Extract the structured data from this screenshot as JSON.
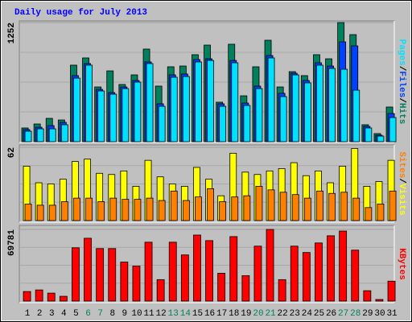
{
  "chart_data": {
    "type": "bar",
    "title": "Daily usage for July 2013",
    "legend_separator": "/",
    "categories": [
      "1",
      "2",
      "3",
      "4",
      "5",
      "6",
      "7",
      "8",
      "9",
      "10",
      "11",
      "12",
      "13",
      "14",
      "15",
      "16",
      "17",
      "18",
      "19",
      "20",
      "21",
      "22",
      "23",
      "24",
      "25",
      "26",
      "27",
      "28",
      "29",
      "30",
      "31"
    ],
    "category_colors": [
      "#000000",
      "#000000",
      "#000000",
      "#000000",
      "#000000",
      "#00805c",
      "#00805c",
      "#000000",
      "#000000",
      "#000000",
      "#000000",
      "#000000",
      "#00805c",
      "#00805c",
      "#000000",
      "#000000",
      "#000000",
      "#000000",
      "#000000",
      "#00805c",
      "#00805c",
      "#000000",
      "#000000",
      "#000000",
      "#000000",
      "#000000",
      "#00805c",
      "#00805c",
      "#000000",
      "#000000",
      "#000000"
    ],
    "panels": [
      {
        "ylim": [
          0,
          1252
        ],
        "yticks": [
          1252
        ],
        "legend_order": [
          2,
          1,
          0
        ],
        "series": [
          {
            "name": "Hits",
            "color": "#00805c",
            "values": [
              144,
              186,
              245,
              228,
              804,
              880,
              575,
              744,
              601,
              702,
              973,
              584,
              787,
              795,
              914,
              1015,
              415,
              1024,
              482,
              787,
              1066,
              575,
              736,
              694,
              914,
              871,
              1252,
              1125,
              178,
              85,
              364
            ]
          },
          {
            "name": "Files",
            "color": "#0040ff",
            "values": [
              127,
              152,
              169,
              203,
              694,
              821,
              550,
              516,
              575,
              643,
              838,
              398,
              702,
              711,
              863,
              871,
              398,
              854,
              406,
              584,
              905,
              508,
              719,
              643,
              829,
              795,
              1049,
              1007,
              161,
              68,
              296
            ]
          },
          {
            "name": "Pages",
            "color": "#00e0ff",
            "values": [
              110,
              135,
              135,
              178,
              668,
              804,
              533,
              499,
              558,
              626,
              821,
              372,
              677,
              685,
              838,
              854,
              372,
              829,
              381,
              558,
              880,
              474,
              702,
              618,
              804,
              770,
              761,
              541,
              144,
              59,
              254
            ]
          }
        ]
      },
      {
        "ylim": [
          0,
          62
        ],
        "yticks": [
          62
        ],
        "legend_order": [
          1,
          0
        ],
        "series": [
          {
            "name": "Visits",
            "color": "#ffff00",
            "values": [
              46,
              32,
              31,
              35,
              50,
              52,
              40,
              39,
              42,
              29,
              51,
              37,
              31,
              29,
              45,
              35,
              21,
              57,
              41,
              39,
              42,
              44,
              49,
              38,
              42,
              32,
              46,
              61,
              29,
              33,
              51
            ]
          },
          {
            "name": "Sites",
            "color": "#ff8000",
            "values": [
              14,
              13,
              13,
              16,
              19,
              19,
              16,
              19,
              18,
              18,
              19,
              17,
              25,
              17,
              20,
              27,
              16,
              20,
              21,
              29,
              26,
              24,
              22,
              19,
              25,
              23,
              24,
              19,
              11,
              14,
              25
            ]
          }
        ]
      },
      {
        "ylim": [
          0,
          69781
        ],
        "yticks": [
          69781
        ],
        "legend_order": [
          0
        ],
        "series": [
          {
            "name": "KBytes",
            "color": "#ff0000",
            "values": [
              9300,
              10850,
              7750,
              4650,
              51900,
              61200,
              51150,
              51150,
              37980,
              34100,
              57350,
              20900,
              57350,
              44950,
              64300,
              58900,
              27100,
              62800,
              24800,
              53500,
              69781,
              20900,
              53500,
              47300,
              56600,
              63600,
              68200,
              49600,
              10100,
              1550,
              19400
            ]
          }
        ]
      }
    ]
  }
}
